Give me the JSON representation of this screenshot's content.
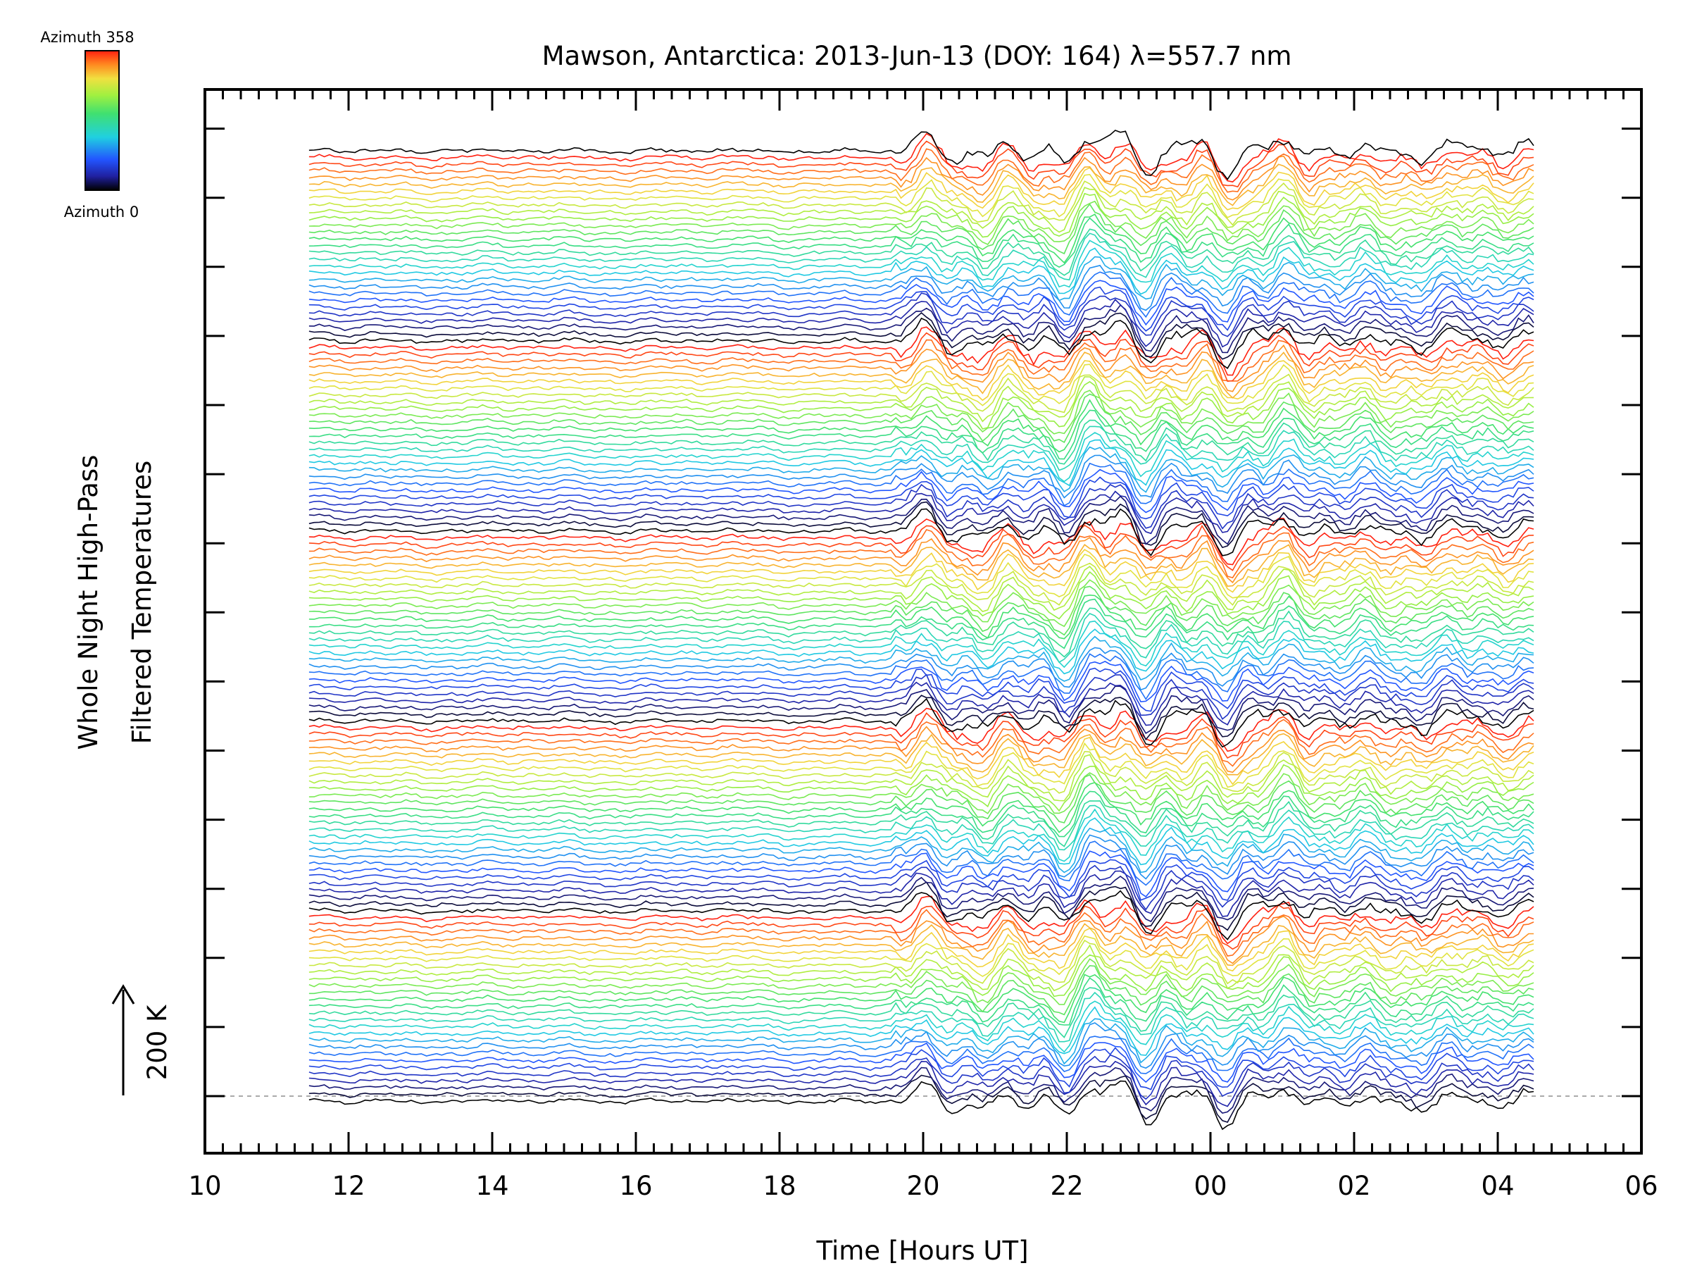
{
  "chart_data": {
    "type": "line",
    "title": "Mawson, Antarctica: 2013-Jun-13 (DOY: 164) λ=557.7 nm",
    "xlabel": "Time [Hours UT]",
    "ylabel_line1": "Whole Night High-Pass",
    "ylabel_line2": "Filtered Temperatures",
    "scale_bar_label": "200 K",
    "scale_bar_value_K": 200,
    "x_ticks": [
      "10",
      "12",
      "14",
      "16",
      "18",
      "20",
      "22",
      "00",
      "02",
      "04",
      "06"
    ],
    "xlim_hours_UT": [
      10,
      30
    ],
    "data_x_range_hours_UT": [
      11.45,
      28.5
    ],
    "series_count": 141,
    "series_description": "stacked traces, one per azimuth direction, offset vertically",
    "colorbar": {
      "label_top": "Azimuth  358",
      "label_bottom": "Azimuth  0",
      "min": 0,
      "max": 358,
      "colormap": "rainbow"
    },
    "grid": false,
    "baseline_dashed": true
  }
}
